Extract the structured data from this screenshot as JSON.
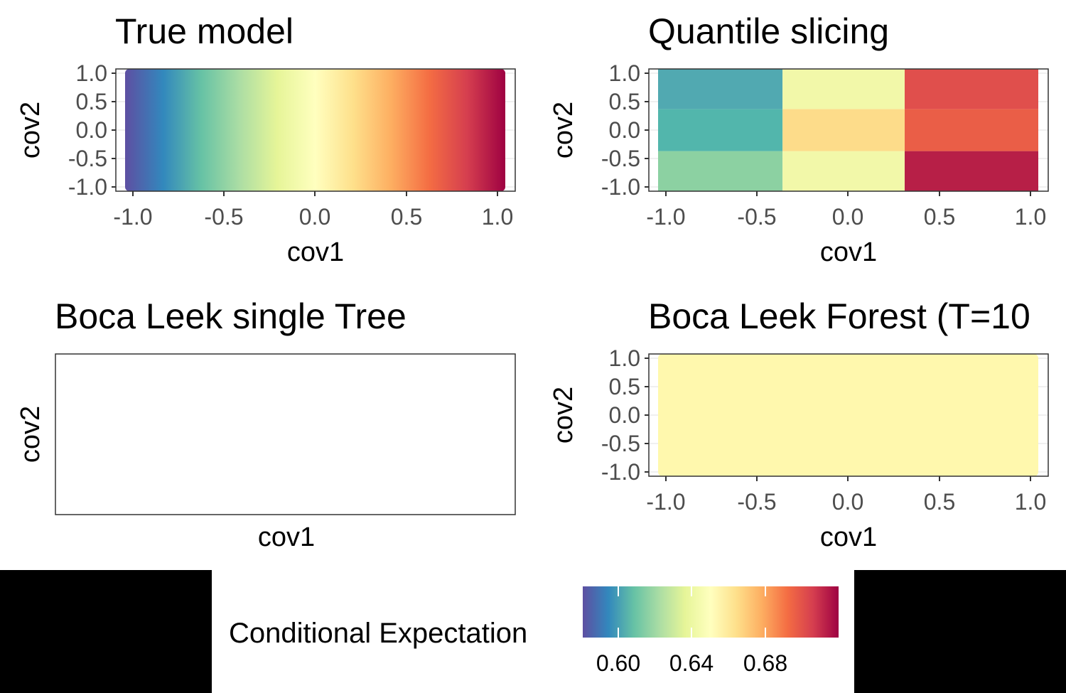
{
  "chart_data": [
    {
      "type": "heatmap",
      "title": "True model",
      "xlabel": "cov1",
      "ylabel": "cov2",
      "xlim": [
        -1.06,
        1.06
      ],
      "ylim": [
        -1.05,
        1.05
      ],
      "xticks": [
        "-1.0",
        "-0.5",
        "0.0",
        "0.5",
        "1.0"
      ],
      "yticks": [
        "1.0",
        "0.5",
        "0.0",
        "-0.5",
        "-1.0"
      ],
      "fill": "gradient varying along cov1 from low (blue) at -1.0 to high (red) at 1.0"
    },
    {
      "type": "heatmap",
      "title": "Quantile slicing",
      "xlabel": "cov1",
      "ylabel": "cov2",
      "xlim": [
        -1.06,
        1.06
      ],
      "ylim": [
        -1.05,
        1.05
      ],
      "xticks": [
        "-1.0",
        "-0.5",
        "0.0",
        "0.5",
        "1.0"
      ],
      "yticks": [
        "1.0",
        "0.5",
        "0.0",
        "-0.5",
        "-1.0"
      ],
      "x_breaks": [
        -1.0,
        -0.36,
        0.31,
        1.0
      ],
      "y_breaks": [
        -1.0,
        -0.37,
        0.37,
        1.0
      ],
      "cell_colors": [
        [
          "#8cd1a2",
          "#52b6ac",
          "#51a9b1"
        ],
        [
          "#f2f8a9",
          "#fddc8a",
          "#f2f8a9"
        ],
        [
          "#b71f47",
          "#ea5e47",
          "#e04f4c"
        ]
      ]
    },
    {
      "type": "heatmap",
      "title": "Boca Leek single Tree",
      "xlabel": "cov1",
      "ylabel": "cov2"
    },
    {
      "type": "heatmap",
      "title": "Boca Leek Forest (T=10",
      "xlabel": "cov1",
      "ylabel": "cov2",
      "xlim": [
        -1.06,
        1.06
      ],
      "ylim": [
        -1.05,
        1.05
      ],
      "xticks": [
        "-1.0",
        "-0.5",
        "0.0",
        "0.5",
        "1.0"
      ],
      "yticks": [
        "1.0",
        "0.5",
        "0.0",
        "-0.5",
        "-1.0"
      ],
      "fill_color": "#fff8ad"
    }
  ],
  "legend": {
    "title": "Conditional Expectation",
    "ticks": [
      "0.60",
      "0.64",
      "0.68"
    ],
    "colors": [
      "#5e4fa2",
      "#3288bd",
      "#66c2a5",
      "#abdda4",
      "#e6f598",
      "#ffffbf",
      "#fee08b",
      "#fdae61",
      "#f46d43",
      "#d53e4f",
      "#9e0142"
    ]
  }
}
